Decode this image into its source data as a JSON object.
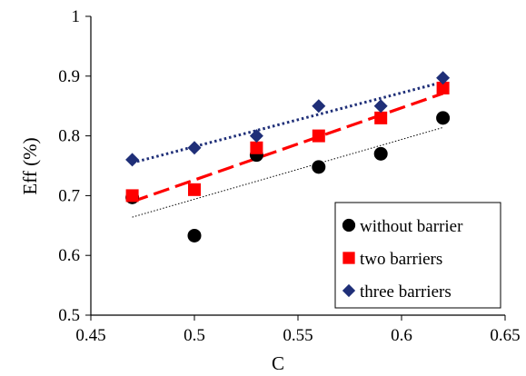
{
  "chart_data": {
    "type": "scatter",
    "title": "",
    "xlabel": "C",
    "ylabel": "Eff (%)",
    "xlim": [
      0.45,
      0.65
    ],
    "ylim": [
      0.5,
      1.0
    ],
    "x_ticks": [
      0.45,
      0.5,
      0.55,
      0.6,
      0.65
    ],
    "x_tick_labels": [
      "0.45",
      "0.5",
      "0.55",
      "0.6",
      "0.65"
    ],
    "y_ticks": [
      0.5,
      0.6,
      0.7,
      0.8,
      0.9,
      1.0
    ],
    "y_tick_labels": [
      "0.5",
      "0.6",
      "0.7",
      "0.8",
      "0.9",
      "1"
    ],
    "grid": false,
    "legend_position": "bottom-right",
    "series": [
      {
        "name": "without barrier",
        "marker": "circle",
        "color": "#000000",
        "x": [
          0.47,
          0.5,
          0.53,
          0.56,
          0.59,
          0.62
        ],
        "y": [
          0.697,
          0.633,
          0.768,
          0.748,
          0.77,
          0.83
        ],
        "trendline": {
          "style": "dotted-fine",
          "color": "#000000",
          "y_start": 0.664,
          "y_end": 0.814
        }
      },
      {
        "name": "two barriers",
        "marker": "square",
        "color": "#ff0000",
        "x": [
          0.47,
          0.5,
          0.53,
          0.56,
          0.59,
          0.62
        ],
        "y": [
          0.7,
          0.71,
          0.78,
          0.8,
          0.83,
          0.88
        ],
        "trendline": {
          "style": "long-dash",
          "color": "#ff0000",
          "y_start": 0.69,
          "y_end": 0.871
        }
      },
      {
        "name": "three barriers",
        "marker": "diamond",
        "color": "#1f2f78",
        "x": [
          0.47,
          0.5,
          0.53,
          0.56,
          0.59,
          0.62
        ],
        "y": [
          0.76,
          0.78,
          0.8,
          0.85,
          0.85,
          0.897
        ],
        "trendline": {
          "style": "dotted",
          "color": "#1f2f78",
          "y_start": 0.755,
          "y_end": 0.89
        }
      }
    ]
  }
}
